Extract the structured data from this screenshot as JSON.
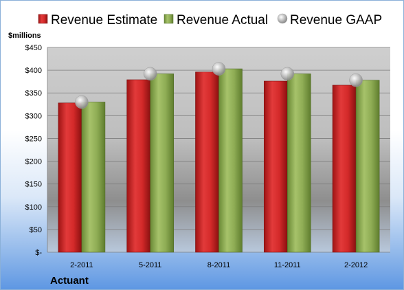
{
  "chart_data": {
    "type": "bar",
    "categories": [
      "2-2011",
      "5-2011",
      "8-2011",
      "11-2011",
      "2-2012"
    ],
    "series": [
      {
        "name": "Revenue Estimate",
        "values": [
          328,
          379,
          396,
          376,
          367
        ],
        "color": "#d42a2a"
      },
      {
        "name": "Revenue Actual",
        "values": [
          330,
          392,
          403,
          392,
          378
        ],
        "color": "#8fad55"
      },
      {
        "name": "Revenue GAAP",
        "values": [
          330,
          392,
          403,
          392,
          378
        ],
        "color": "#b9b9b9",
        "marker": "sphere"
      }
    ],
    "ylabel": "$millions",
    "ylim": [
      0,
      450
    ],
    "yticks": [
      0,
      50,
      100,
      150,
      200,
      250,
      300,
      350,
      400,
      450
    ],
    "ytick_labels": [
      "$-",
      "$50",
      "$100",
      "$150",
      "$200",
      "$250",
      "$300",
      "$350",
      "$400",
      "$450"
    ],
    "company": "Actuant",
    "grid": true,
    "legend_position": "top"
  }
}
